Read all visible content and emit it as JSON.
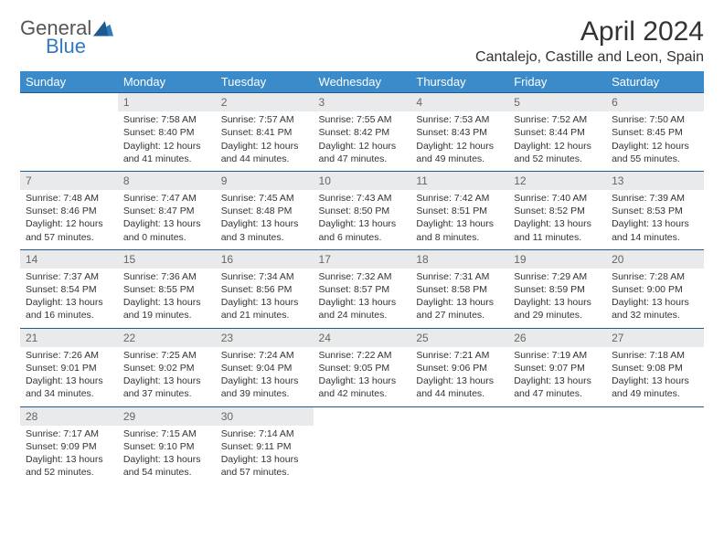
{
  "brand": {
    "part1": "General",
    "part2": "Blue"
  },
  "title": "April 2024",
  "location": "Cantalejo, Castille and Leon, Spain",
  "colors": {
    "header_bg": "#3b8bca",
    "header_text": "#ffffff",
    "daynum_bg": "#e9eaeb",
    "daynum_text": "#666666",
    "rule": "#1e5a8f",
    "brand_blue": "#2f7ac0"
  },
  "weekdays": [
    "Sunday",
    "Monday",
    "Tuesday",
    "Wednesday",
    "Thursday",
    "Friday",
    "Saturday"
  ],
  "weeks": [
    [
      null,
      {
        "n": "1",
        "sr": "7:58 AM",
        "ss": "8:40 PM",
        "dl": "12 hours and 41 minutes."
      },
      {
        "n": "2",
        "sr": "7:57 AM",
        "ss": "8:41 PM",
        "dl": "12 hours and 44 minutes."
      },
      {
        "n": "3",
        "sr": "7:55 AM",
        "ss": "8:42 PM",
        "dl": "12 hours and 47 minutes."
      },
      {
        "n": "4",
        "sr": "7:53 AM",
        "ss": "8:43 PM",
        "dl": "12 hours and 49 minutes."
      },
      {
        "n": "5",
        "sr": "7:52 AM",
        "ss": "8:44 PM",
        "dl": "12 hours and 52 minutes."
      },
      {
        "n": "6",
        "sr": "7:50 AM",
        "ss": "8:45 PM",
        "dl": "12 hours and 55 minutes."
      }
    ],
    [
      {
        "n": "7",
        "sr": "7:48 AM",
        "ss": "8:46 PM",
        "dl": "12 hours and 57 minutes."
      },
      {
        "n": "8",
        "sr": "7:47 AM",
        "ss": "8:47 PM",
        "dl": "13 hours and 0 minutes."
      },
      {
        "n": "9",
        "sr": "7:45 AM",
        "ss": "8:48 PM",
        "dl": "13 hours and 3 minutes."
      },
      {
        "n": "10",
        "sr": "7:43 AM",
        "ss": "8:50 PM",
        "dl": "13 hours and 6 minutes."
      },
      {
        "n": "11",
        "sr": "7:42 AM",
        "ss": "8:51 PM",
        "dl": "13 hours and 8 minutes."
      },
      {
        "n": "12",
        "sr": "7:40 AM",
        "ss": "8:52 PM",
        "dl": "13 hours and 11 minutes."
      },
      {
        "n": "13",
        "sr": "7:39 AM",
        "ss": "8:53 PM",
        "dl": "13 hours and 14 minutes."
      }
    ],
    [
      {
        "n": "14",
        "sr": "7:37 AM",
        "ss": "8:54 PM",
        "dl": "13 hours and 16 minutes."
      },
      {
        "n": "15",
        "sr": "7:36 AM",
        "ss": "8:55 PM",
        "dl": "13 hours and 19 minutes."
      },
      {
        "n": "16",
        "sr": "7:34 AM",
        "ss": "8:56 PM",
        "dl": "13 hours and 21 minutes."
      },
      {
        "n": "17",
        "sr": "7:32 AM",
        "ss": "8:57 PM",
        "dl": "13 hours and 24 minutes."
      },
      {
        "n": "18",
        "sr": "7:31 AM",
        "ss": "8:58 PM",
        "dl": "13 hours and 27 minutes."
      },
      {
        "n": "19",
        "sr": "7:29 AM",
        "ss": "8:59 PM",
        "dl": "13 hours and 29 minutes."
      },
      {
        "n": "20",
        "sr": "7:28 AM",
        "ss": "9:00 PM",
        "dl": "13 hours and 32 minutes."
      }
    ],
    [
      {
        "n": "21",
        "sr": "7:26 AM",
        "ss": "9:01 PM",
        "dl": "13 hours and 34 minutes."
      },
      {
        "n": "22",
        "sr": "7:25 AM",
        "ss": "9:02 PM",
        "dl": "13 hours and 37 minutes."
      },
      {
        "n": "23",
        "sr": "7:24 AM",
        "ss": "9:04 PM",
        "dl": "13 hours and 39 minutes."
      },
      {
        "n": "24",
        "sr": "7:22 AM",
        "ss": "9:05 PM",
        "dl": "13 hours and 42 minutes."
      },
      {
        "n": "25",
        "sr": "7:21 AM",
        "ss": "9:06 PM",
        "dl": "13 hours and 44 minutes."
      },
      {
        "n": "26",
        "sr": "7:19 AM",
        "ss": "9:07 PM",
        "dl": "13 hours and 47 minutes."
      },
      {
        "n": "27",
        "sr": "7:18 AM",
        "ss": "9:08 PM",
        "dl": "13 hours and 49 minutes."
      }
    ],
    [
      {
        "n": "28",
        "sr": "7:17 AM",
        "ss": "9:09 PM",
        "dl": "13 hours and 52 minutes."
      },
      {
        "n": "29",
        "sr": "7:15 AM",
        "ss": "9:10 PM",
        "dl": "13 hours and 54 minutes."
      },
      {
        "n": "30",
        "sr": "7:14 AM",
        "ss": "9:11 PM",
        "dl": "13 hours and 57 minutes."
      },
      null,
      null,
      null,
      null
    ]
  ],
  "labels": {
    "sunrise": "Sunrise:",
    "sunset": "Sunset:",
    "daylight": "Daylight:"
  }
}
